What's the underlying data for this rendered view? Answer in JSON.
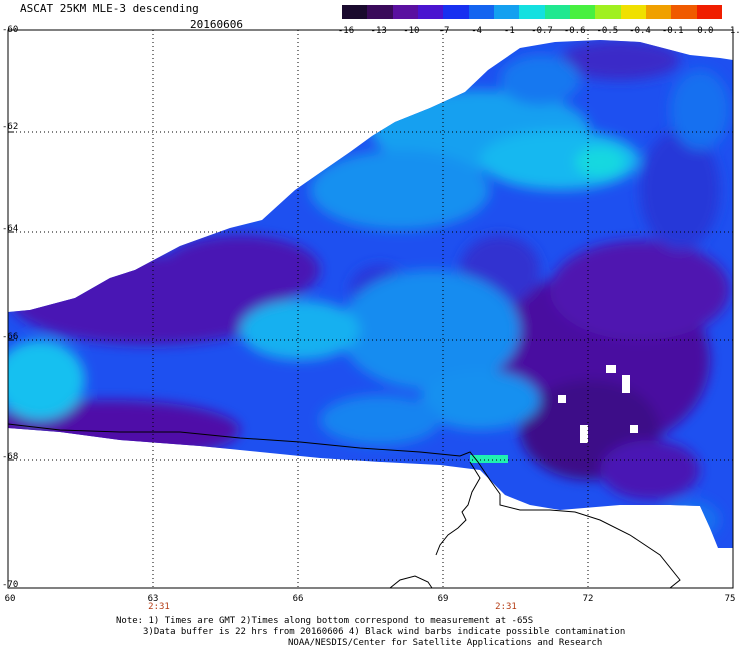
{
  "title": "ASCAT 25KM MLE-3 descending",
  "date": "20160606",
  "colorbar": {
    "labels": [
      "-16",
      "-13",
      "-10",
      "-7",
      "-4",
      "-1",
      "-0.7",
      "-0.6",
      "-0.5",
      "-0.4",
      "-0.1",
      "0.0",
      "1.0"
    ],
    "colors": [
      "#1a0a2e",
      "#3a0a5a",
      "#5a10a0",
      "#4a14d0",
      "#1830f0",
      "#1464f0",
      "#14a0f0",
      "#14e0e0",
      "#20e890",
      "#48f040",
      "#a0f020",
      "#f0e000",
      "#f0a000",
      "#f05a00",
      "#f01e00"
    ]
  },
  "axes": {
    "y_labels": [
      "-60",
      "-62",
      "-64",
      "-66",
      "-68",
      "-70"
    ],
    "x_labels": [
      "60",
      "63",
      "66",
      "69",
      "72",
      "75"
    ]
  },
  "times": [
    "2:31",
    "2:31"
  ],
  "notes": [
    "Note: 1) Times are GMT 2)Times along bottom correspond to measurement at -65S",
    "3)Data buffer is 22 hrs from 20160606 4) Black wind barbs indicate possible contamination",
    "NOAA/NESDIS/Center for Satellite Applications and Research"
  ]
}
